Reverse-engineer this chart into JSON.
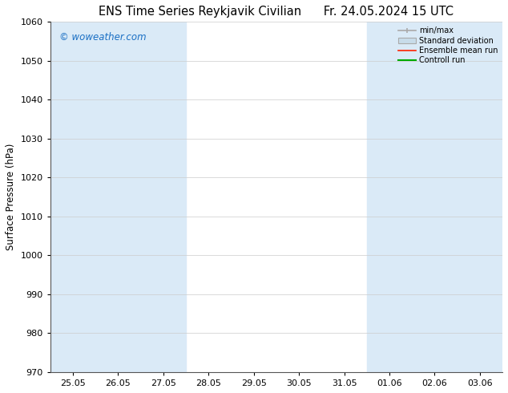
{
  "title": "ENS Time Series Reykjavik Civilian",
  "title_right": "Fr. 24.05.2024 15 UTC",
  "ylabel": "Surface Pressure (hPa)",
  "ylim": [
    970,
    1060
  ],
  "yticks": [
    970,
    980,
    990,
    1000,
    1010,
    1020,
    1030,
    1040,
    1050,
    1060
  ],
  "xtick_labels": [
    "25.05",
    "26.05",
    "27.05",
    "28.05",
    "29.05",
    "30.05",
    "31.05",
    "01.06",
    "02.06",
    "03.06"
  ],
  "x_positions": [
    0,
    1,
    2,
    3,
    4,
    5,
    6,
    7,
    8,
    9
  ],
  "band_color": "#daeaf7",
  "background_color": "#ffffff",
  "watermark_text": "© woweather.com",
  "watermark_color": "#1a6fc4",
  "legend_entries": [
    "min/max",
    "Standard deviation",
    "Ensemble mean run",
    "Controll run"
  ],
  "legend_colors": [
    "#aaaaaa",
    "#c8d8e8",
    "#ff0000",
    "#00aa00"
  ],
  "title_fontsize": 10.5,
  "axis_fontsize": 8.5,
  "tick_fontsize": 8
}
